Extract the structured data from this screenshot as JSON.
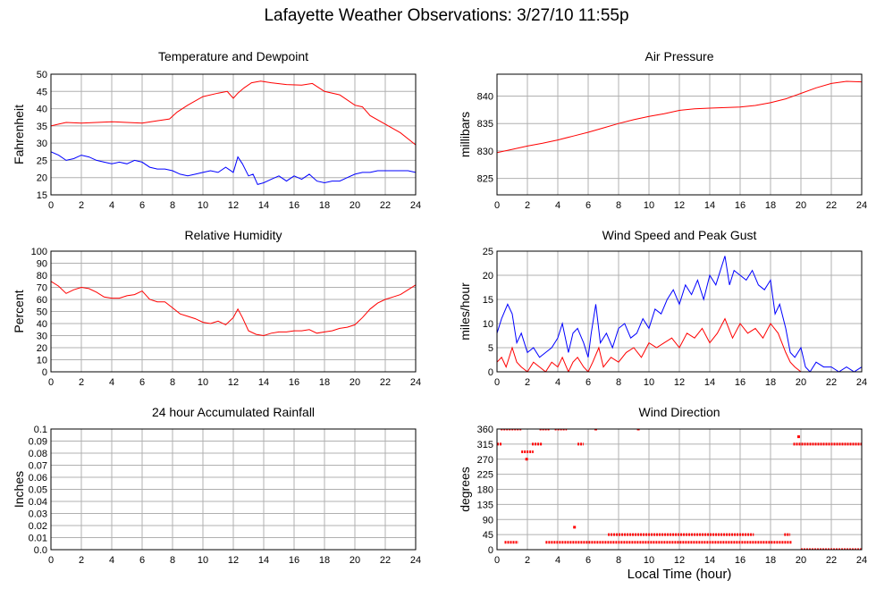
{
  "title": "Lafayette Weather Observations: 3/27/10 11:55p",
  "common_xlabel": "Local Time (hour)",
  "colors": {
    "red": "#ff0000",
    "blue": "#0000ff",
    "grid": "#b0b0b0",
    "rain": "#ff00ff"
  },
  "chart_data": [
    {
      "id": "temp",
      "type": "line",
      "title": "Temperature and Dewpoint",
      "xlabel": "",
      "ylabel": "Fahrenheit",
      "xlim": [
        0,
        24
      ],
      "ylim": [
        15,
        50
      ],
      "xticks": [
        0,
        2,
        4,
        6,
        8,
        10,
        12,
        14,
        16,
        18,
        20,
        22,
        24
      ],
      "yticks": [
        15,
        20,
        25,
        30,
        35,
        40,
        45,
        50
      ],
      "grid": true,
      "series": [
        {
          "color": "#ff0000",
          "x": [
            0,
            0.5,
            1,
            2,
            3,
            4,
            5,
            6,
            7,
            7.8,
            8.3,
            9,
            10,
            11,
            11.6,
            12,
            12.3,
            12.7,
            13.2,
            13.8,
            14.5,
            15.5,
            16.5,
            17.2,
            18,
            19,
            20,
            20.5,
            21,
            22,
            23,
            24
          ],
          "y": [
            35,
            35.5,
            36,
            35.8,
            36,
            36.2,
            36,
            35.8,
            36.5,
            37,
            39,
            41,
            43.5,
            44.5,
            45,
            43,
            44.5,
            46,
            47.5,
            48,
            47.5,
            47,
            46.8,
            47.3,
            45,
            44,
            41,
            40.5,
            38,
            35.5,
            33,
            29.5
          ]
        },
        {
          "color": "#0000ff",
          "x": [
            0,
            0.5,
            1,
            1.5,
            2,
            2.5,
            3,
            3.5,
            4,
            4.5,
            5,
            5.5,
            6,
            6.5,
            7,
            7.5,
            8,
            8.5,
            9,
            9.5,
            10,
            10.5,
            11,
            11.5,
            12,
            12.3,
            12.6,
            13,
            13.3,
            13.6,
            14,
            14.5,
            15,
            15.5,
            16,
            16.5,
            17,
            17.5,
            18,
            18.5,
            19,
            19.5,
            20,
            20.5,
            21,
            21.5,
            22,
            22.5,
            23,
            23.5,
            24
          ],
          "y": [
            27.5,
            26.5,
            25,
            25.5,
            26.5,
            26,
            25,
            24.5,
            24,
            24.5,
            24,
            25,
            24.5,
            23,
            22.5,
            22.5,
            22,
            21,
            20.5,
            21,
            21.5,
            22,
            21.5,
            23,
            21.5,
            26,
            24,
            20.5,
            21,
            18,
            18.5,
            19.5,
            20.5,
            19,
            20.5,
            19.5,
            21,
            19,
            18.5,
            19,
            19,
            20,
            21,
            21.5,
            21.5,
            22,
            22,
            22,
            22,
            22,
            21.5
          ]
        }
      ]
    },
    {
      "id": "pressure",
      "type": "line",
      "title": "Air Pressure",
      "xlabel": "",
      "ylabel": "millibars",
      "xlim": [
        0,
        24
      ],
      "ylim": [
        822,
        844
      ],
      "xticks": [
        0,
        2,
        4,
        6,
        8,
        10,
        12,
        14,
        16,
        18,
        20,
        22,
        24
      ],
      "yticks": [
        825,
        830,
        835,
        840
      ],
      "grid": true,
      "series": [
        {
          "color": "#ff0000",
          "x": [
            0,
            1,
            2,
            3,
            4,
            5,
            6,
            7,
            8,
            9,
            10,
            11,
            12,
            13,
            14,
            15,
            16,
            17,
            18,
            19,
            20,
            21,
            22,
            23,
            24
          ],
          "y": [
            829.7,
            830.3,
            830.9,
            831.4,
            832,
            832.7,
            833.4,
            834.2,
            835,
            835.7,
            836.3,
            836.8,
            837.4,
            837.7,
            837.8,
            837.9,
            838,
            838.3,
            838.8,
            839.5,
            840.5,
            841.5,
            842.3,
            842.7,
            842.6
          ]
        }
      ]
    },
    {
      "id": "humidity",
      "type": "line",
      "title": "Relative Humidity",
      "xlabel": "",
      "ylabel": "Percent",
      "xlim": [
        0,
        24
      ],
      "ylim": [
        0,
        100
      ],
      "xticks": [
        0,
        2,
        4,
        6,
        8,
        10,
        12,
        14,
        16,
        18,
        20,
        22,
        24
      ],
      "yticks": [
        0,
        10,
        20,
        30,
        40,
        50,
        60,
        70,
        80,
        90,
        100
      ],
      "grid": true,
      "series": [
        {
          "color": "#ff0000",
          "x": [
            0,
            0.5,
            1,
            1.5,
            2,
            2.5,
            3,
            3.5,
            4,
            4.5,
            5,
            5.5,
            6,
            6.5,
            7,
            7.5,
            8,
            8.5,
            9,
            9.5,
            10,
            10.5,
            11,
            11.5,
            12,
            12.3,
            12.6,
            13,
            13.5,
            14,
            14.5,
            15,
            15.5,
            16,
            16.5,
            17,
            17.5,
            18,
            18.5,
            19,
            19.5,
            20,
            20.5,
            21,
            21.5,
            22,
            22.5,
            23,
            23.5,
            24
          ],
          "y": [
            75,
            71,
            65,
            68,
            70,
            69,
            66,
            62,
            61,
            61,
            63,
            64,
            67,
            60,
            58,
            58,
            53,
            48,
            46,
            44,
            41,
            40,
            42,
            39,
            45,
            52,
            45,
            34,
            31,
            30,
            32,
            33,
            33,
            34,
            34,
            35,
            32,
            33,
            34,
            36,
            37,
            39,
            45,
            52,
            57,
            60,
            62,
            64,
            68,
            72
          ]
        }
      ]
    },
    {
      "id": "wind",
      "type": "line",
      "title": "Wind Speed and Peak Gust",
      "xlabel": "",
      "ylabel": "miles/hour",
      "xlim": [
        0,
        24
      ],
      "ylim": [
        0,
        25
      ],
      "xticks": [
        0,
        2,
        4,
        6,
        8,
        10,
        12,
        14,
        16,
        18,
        20,
        22,
        24
      ],
      "yticks": [
        0,
        5,
        10,
        15,
        20,
        25
      ],
      "grid": true,
      "series": [
        {
          "color": "#0000ff",
          "x": [
            0,
            0.3,
            0.7,
            1,
            1.3,
            1.6,
            2,
            2.4,
            2.8,
            3.2,
            3.6,
            4,
            4.3,
            4.7,
            5,
            5.3,
            5.7,
            6,
            6.2,
            6.5,
            6.8,
            7.2,
            7.6,
            8,
            8.4,
            8.8,
            9.2,
            9.6,
            10,
            10.4,
            10.8,
            11.2,
            11.6,
            12,
            12.4,
            12.8,
            13.2,
            13.6,
            14,
            14.4,
            14.8,
            15,
            15.3,
            15.6,
            16,
            16.4,
            16.8,
            17.2,
            17.6,
            18,
            18.3,
            18.6,
            19,
            19.3,
            19.6,
            20,
            20.3,
            20.6,
            21,
            21.5,
            22,
            22.5,
            23,
            23.5,
            24
          ],
          "y": [
            8,
            11,
            14,
            12,
            6,
            8,
            4,
            5,
            3,
            4,
            5,
            7,
            10,
            4,
            8,
            9,
            6,
            3,
            8,
            14,
            6,
            8,
            5,
            9,
            10,
            7,
            8,
            11,
            9,
            13,
            12,
            15,
            17,
            14,
            18,
            16,
            19,
            15,
            20,
            18,
            22,
            24,
            18,
            21,
            20,
            19,
            21,
            18,
            17,
            19,
            12,
            14,
            9,
            4,
            3,
            5,
            1,
            0,
            2,
            1,
            1,
            0,
            1,
            0,
            1
          ]
        },
        {
          "color": "#ff0000",
          "x": [
            0,
            0.3,
            0.6,
            1,
            1.3,
            1.6,
            2,
            2.4,
            2.8,
            3.2,
            3.6,
            4,
            4.3,
            4.7,
            5,
            5.3,
            5.7,
            6,
            6.3,
            6.7,
            7,
            7.5,
            8,
            8.5,
            9,
            9.5,
            10,
            10.5,
            11,
            11.5,
            12,
            12.5,
            13,
            13.5,
            14,
            14.5,
            15,
            15.5,
            16,
            16.5,
            17,
            17.5,
            18,
            18.5,
            19,
            19.3,
            19.6,
            20,
            20.5,
            21,
            22,
            23,
            24
          ],
          "y": [
            2,
            3,
            1,
            5,
            2,
            1,
            0,
            2,
            1,
            0,
            2,
            1,
            3,
            0,
            2,
            3,
            1,
            0,
            2,
            5,
            1,
            3,
            2,
            4,
            5,
            3,
            6,
            5,
            6,
            7,
            5,
            8,
            7,
            9,
            6,
            8,
            11,
            7,
            10,
            8,
            9,
            7,
            10,
            8,
            4,
            2,
            1,
            0,
            0,
            0,
            0,
            0,
            0
          ]
        }
      ]
    },
    {
      "id": "rain",
      "type": "line",
      "title": "24 hour Accumulated Rainfall",
      "xlabel": "",
      "ylabel": "Inches",
      "xlim": [
        0,
        24
      ],
      "ylim": [
        0,
        0.1
      ],
      "xticks": [
        0,
        2,
        4,
        6,
        8,
        10,
        12,
        14,
        16,
        18,
        20,
        22,
        24
      ],
      "yticks": [
        0,
        0.01,
        0.02,
        0.03,
        0.04,
        0.05,
        0.06,
        0.07,
        0.08,
        0.09,
        0.1
      ],
      "ytick_labels": [
        "0.0",
        "0.01",
        "0.02",
        "0.03",
        "0.04",
        "0.05",
        "0.06",
        "0.07",
        "0.08",
        "0.09",
        "0.1"
      ],
      "grid": true,
      "series": [
        {
          "color": "#ff00ff",
          "x": [
            0,
            24
          ],
          "y": [
            0,
            0
          ]
        }
      ]
    },
    {
      "id": "direction",
      "type": "scatter",
      "title": "Wind Direction",
      "xlabel": "Local Time (hour)",
      "ylabel": "degrees",
      "xlim": [
        0,
        24
      ],
      "ylim": [
        0,
        360
      ],
      "xticks": [
        0,
        2,
        4,
        6,
        8,
        10,
        12,
        14,
        16,
        18,
        20,
        22,
        24
      ],
      "yticks": [
        0,
        45,
        90,
        135,
        180,
        225,
        270,
        315,
        360
      ],
      "grid": true,
      "series": [
        {
          "color": "#ff0000",
          "segments": [
            {
              "x0": 0,
              "x1": 0.35,
              "y": 315
            },
            {
              "x0": 0.25,
              "x1": 1.6,
              "y": 360
            },
            {
              "x0": 0.5,
              "x1": 1.4,
              "y": 22
            },
            {
              "x0": 1.6,
              "x1": 2.4,
              "y": 292
            },
            {
              "x0": 2.3,
              "x1": 3.0,
              "y": 315
            },
            {
              "x0": 2.8,
              "x1": 3.5,
              "y": 360
            },
            {
              "x0": 3.2,
              "x1": 19.4,
              "y": 22
            },
            {
              "x0": 3.8,
              "x1": 4.6,
              "y": 360
            },
            {
              "x0": 5.3,
              "x1": 5.7,
              "y": 315
            },
            {
              "x0": 7.3,
              "x1": 16.9,
              "y": 45
            },
            {
              "x0": 18.9,
              "x1": 19.3,
              "y": 45
            },
            {
              "x0": 19.5,
              "x1": 24,
              "y": 315
            },
            {
              "x0": 20.0,
              "x1": 24,
              "y": 0
            }
          ],
          "points": [
            {
              "x": 1.95,
              "y": 270
            },
            {
              "x": 5.1,
              "y": 67
            },
            {
              "x": 6.5,
              "y": 360
            },
            {
              "x": 9.3,
              "y": 360
            },
            {
              "x": 19.85,
              "y": 337
            }
          ]
        }
      ]
    }
  ]
}
